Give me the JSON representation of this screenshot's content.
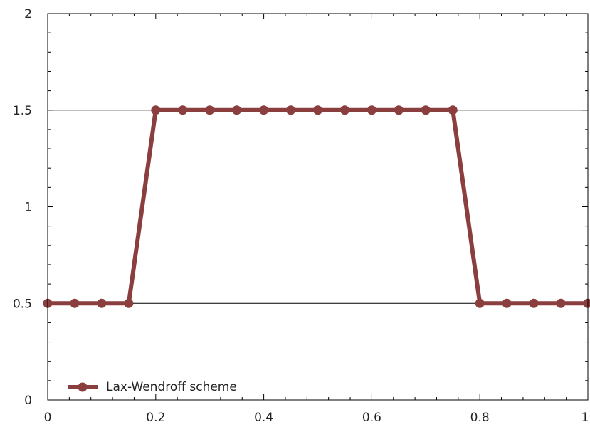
{
  "chart_data": {
    "type": "line",
    "title": "",
    "xlabel": "",
    "ylabel": "",
    "xlim": [
      0,
      1
    ],
    "ylim": [
      0,
      2
    ],
    "x_ticks": [
      0,
      0.2,
      0.4,
      0.6,
      0.8,
      1
    ],
    "x_tick_labels": [
      "0",
      "0.2",
      "0.4",
      "0.6",
      "0.8",
      "1"
    ],
    "y_ticks": [
      0,
      0.5,
      1,
      1.5,
      2
    ],
    "y_tick_labels": [
      "0",
      "0.5",
      "1",
      "1.5",
      "2"
    ],
    "reference_lines_y": [
      0.5,
      1.5
    ],
    "grid": false,
    "legend_position": "bottom-left",
    "series": [
      {
        "name": "Lax-Wendroff scheme",
        "color": "#8b3e3e",
        "x": [
          0,
          0.05,
          0.1,
          0.15,
          0.2,
          0.25,
          0.3,
          0.35,
          0.4,
          0.45,
          0.5,
          0.55,
          0.6,
          0.65,
          0.7,
          0.75,
          0.8,
          0.85,
          0.9,
          0.95,
          1
        ],
        "y": [
          0.5,
          0.5,
          0.5,
          0.5,
          1.5,
          1.5,
          1.5,
          1.5,
          1.5,
          1.5,
          1.5,
          1.5,
          1.5,
          1.5,
          1.5,
          1.5,
          0.5,
          0.5,
          0.5,
          0.5,
          0.5
        ]
      }
    ]
  }
}
